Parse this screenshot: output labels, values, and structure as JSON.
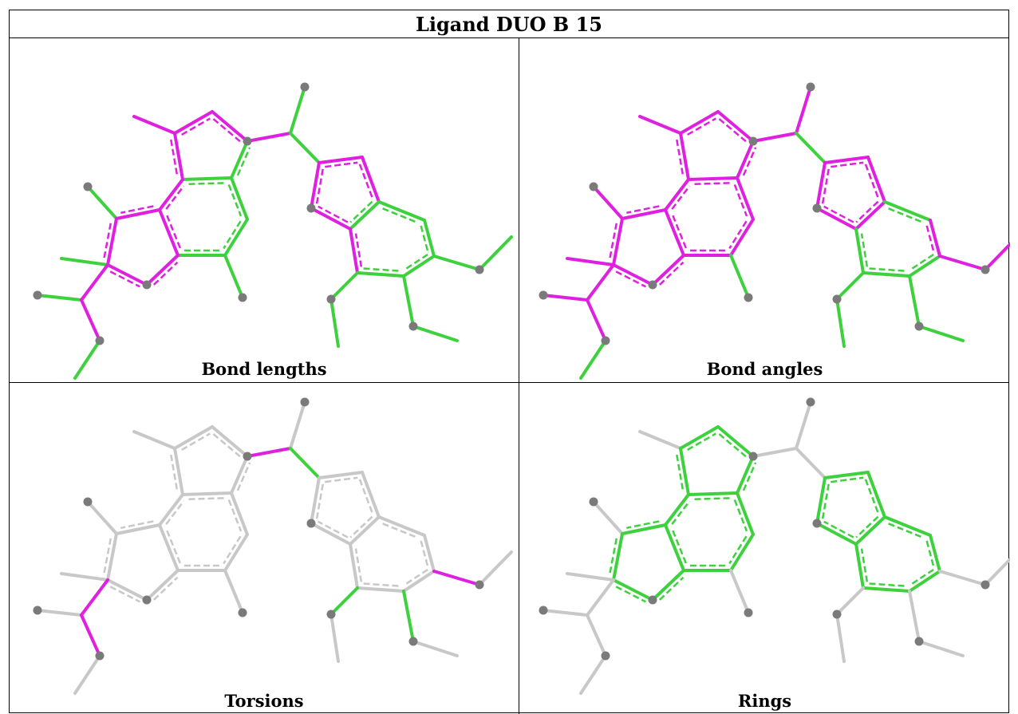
{
  "title": "Ligand DUO B 15",
  "colors": {
    "green": "#3ed13e",
    "magenta": "#e020e0",
    "gray_bond": "#c8c8c8",
    "atom": "#7a7a7a"
  },
  "panels": [
    {
      "id": "bond-lengths",
      "caption": "Bond lengths"
    },
    {
      "id": "bond-angles",
      "caption": "Bond angles"
    },
    {
      "id": "torsions",
      "caption": "Torsions"
    },
    {
      "id": "rings",
      "caption": "Rings"
    }
  ]
}
